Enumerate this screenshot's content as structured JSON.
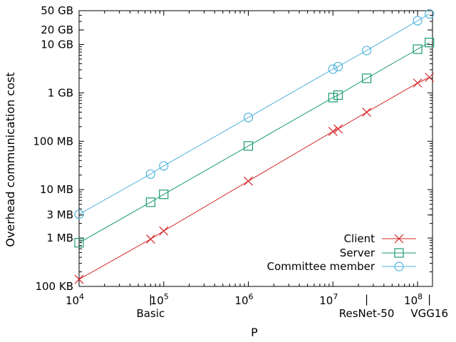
{
  "chart_data": {
    "type": "line",
    "title": "",
    "xlabel": "P",
    "ylabel": "Overhead communication cost",
    "x_scale": "log",
    "y_scale": "log",
    "xlim": [
      10000,
      150000000
    ],
    "ylim_bytes": [
      100000,
      50000000000
    ],
    "x_ticks": [
      {
        "value": 10000,
        "base": "10",
        "exp": "4"
      },
      {
        "value": 100000,
        "base": "10",
        "exp": "5"
      },
      {
        "value": 1000000,
        "base": "10",
        "exp": "6"
      },
      {
        "value": 10000000,
        "base": "10",
        "exp": "7"
      },
      {
        "value": 100000000,
        "base": "10",
        "exp": "8"
      }
    ],
    "y_ticks": [
      {
        "value": 100000,
        "label": "100 KB"
      },
      {
        "value": 1000000,
        "label": "1 MB"
      },
      {
        "value": 3000000,
        "label": "3 MB"
      },
      {
        "value": 10000000,
        "label": "10 MB"
      },
      {
        "value": 100000000,
        "label": "100 MB"
      },
      {
        "value": 1000000000,
        "label": "1 GB"
      },
      {
        "value": 10000000000,
        "label": "10 GB"
      },
      {
        "value": 20000000000,
        "label": "20 GB"
      },
      {
        "value": 50000000000,
        "label": "50 GB"
      }
    ],
    "annotations": [
      {
        "label": "Basic",
        "x": 70000,
        "marker": "|"
      },
      {
        "label": "ResNet-50",
        "x": 25000000,
        "marker": "|"
      },
      {
        "label": "VGG16",
        "x": 138000000,
        "marker": "|"
      }
    ],
    "series": [
      {
        "name": "Client",
        "color": "#d62728",
        "marker": "x",
        "x": [
          10000,
          70000,
          100000,
          1000000,
          10000000,
          11500000,
          25000000,
          100000000,
          138000000
        ],
        "y": [
          140000,
          950000,
          1400000,
          15000000,
          160000000,
          180000000,
          400000000,
          1600000000,
          2100000000
        ]
      },
      {
        "name": "Server",
        "color": "#1a9a72",
        "marker": "square",
        "x": [
          10000,
          70000,
          100000,
          1000000,
          10000000,
          11500000,
          25000000,
          100000000,
          138000000
        ],
        "y": [
          800000,
          5500000,
          8000000,
          80000000,
          800000000,
          900000000,
          2000000000,
          8000000000,
          11000000000
        ]
      },
      {
        "name": "Committee member",
        "color": "#4fb4dc",
        "marker": "circle",
        "x": [
          10000,
          70000,
          100000,
          1000000,
          10000000,
          11500000,
          25000000,
          100000000,
          138000000
        ],
        "y": [
          3100000,
          21000000,
          31000000,
          310000000,
          3100000000,
          3500000000,
          7500000000,
          31000000000,
          43000000000
        ]
      }
    ],
    "legend_position": "bottom-right",
    "grid": false
  }
}
